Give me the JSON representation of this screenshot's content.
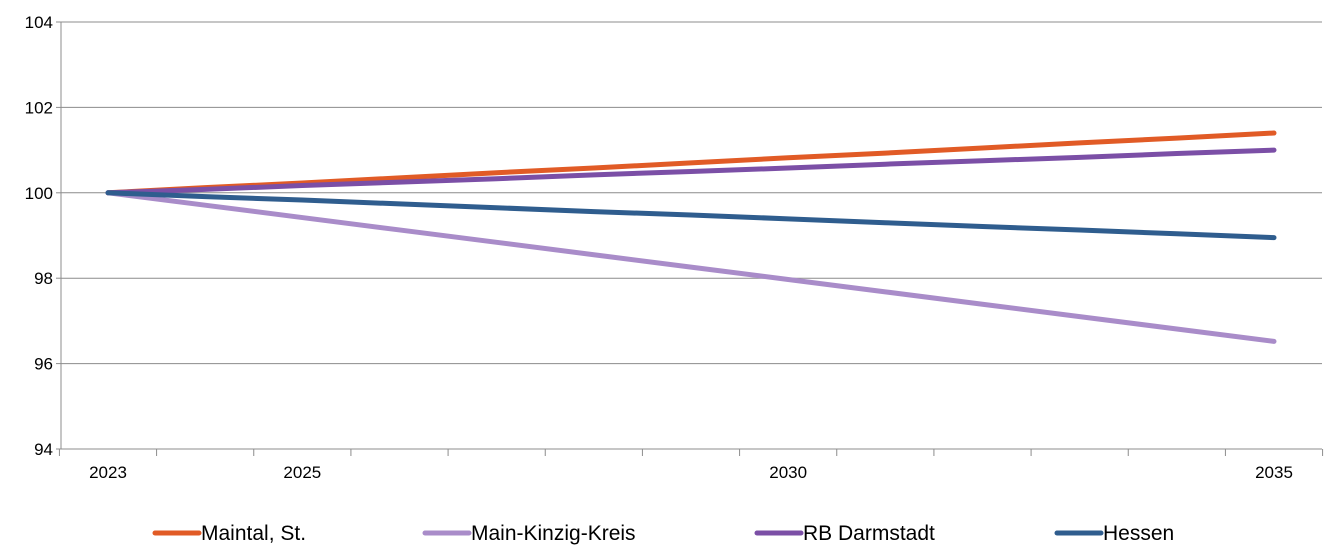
{
  "chart_data": {
    "type": "line",
    "title": "",
    "xlabel": "",
    "ylabel": "",
    "x": [
      2023,
      2024,
      2025,
      2026,
      2027,
      2028,
      2029,
      2030,
      2031,
      2032,
      2033,
      2034,
      2035
    ],
    "x_tick_labels": [
      "2023",
      "2025",
      "2030",
      "2035"
    ],
    "x_tick_label_years": [
      2023,
      2025,
      2030,
      2035
    ],
    "ylim": [
      94,
      104
    ],
    "y_ticks": [
      94,
      96,
      98,
      100,
      102,
      104
    ],
    "y_tick_labels": [
      "94",
      "96",
      "98",
      "100",
      "102",
      "104"
    ],
    "grid": "horizontal",
    "legend_position": "bottom",
    "series": [
      {
        "name": "Maintal, St.",
        "color": "#E15B26",
        "values": [
          100.0,
          100.12,
          100.23,
          100.35,
          100.47,
          100.58,
          100.7,
          100.82,
          100.93,
          101.05,
          101.17,
          101.28,
          101.4
        ]
      },
      {
        "name": "Main-Kinzig-Kreis",
        "color": "#A98CC9",
        "values": [
          100.0,
          99.71,
          99.42,
          99.13,
          98.84,
          98.55,
          98.26,
          97.97,
          97.68,
          97.39,
          97.1,
          96.81,
          96.52
        ]
      },
      {
        "name": "RB Darmstadt",
        "color": "#7B4FA6",
        "values": [
          100.0,
          100.08,
          100.17,
          100.25,
          100.33,
          100.42,
          100.5,
          100.58,
          100.67,
          100.75,
          100.83,
          100.92,
          101.0
        ]
      },
      {
        "name": "Hessen",
        "color": "#2F5D8E",
        "values": [
          100.0,
          99.91,
          99.83,
          99.74,
          99.65,
          99.56,
          99.48,
          99.39,
          99.3,
          99.21,
          99.13,
          99.04,
          98.95
        ]
      }
    ]
  }
}
